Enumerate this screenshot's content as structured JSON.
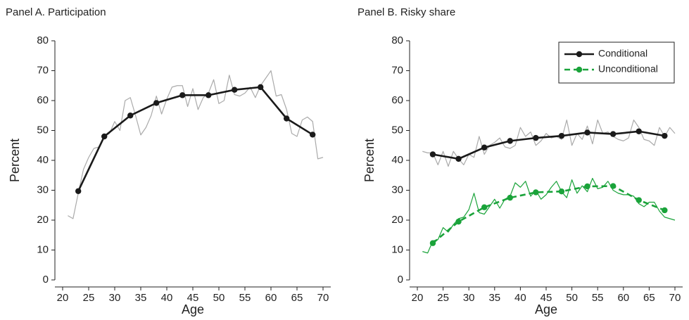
{
  "chart_data": [
    {
      "type": "line",
      "title": "Panel A. Participation",
      "xlabel": "Age",
      "ylabel": "Percent",
      "xlim": [
        20,
        70
      ],
      "xticks": [
        20,
        25,
        30,
        35,
        40,
        45,
        50,
        55,
        60,
        65,
        70
      ],
      "ylim": [
        0,
        80
      ],
      "yticks": [
        0,
        10,
        20,
        30,
        40,
        50,
        60,
        70,
        80
      ],
      "series": [
        {
          "color": "#aaaaaa",
          "x": [
            21,
            22,
            23,
            24,
            25,
            26,
            27,
            28,
            29,
            30,
            31,
            32,
            33,
            34,
            35,
            36,
            37,
            38,
            39,
            40,
            41,
            42,
            43,
            44,
            45,
            46,
            47,
            48,
            49,
            50,
            51,
            52,
            53,
            54,
            55,
            56,
            57,
            58,
            59,
            60,
            61,
            62,
            63,
            64,
            65,
            66,
            67,
            68,
            69,
            70
          ],
          "values": [
            21.5,
            20.5,
            29,
            37,
            41,
            44,
            44.5,
            48,
            49,
            53,
            50,
            60,
            61,
            55,
            48.5,
            51,
            55,
            61.5,
            55.5,
            60.5,
            64.5,
            65,
            65,
            58,
            64,
            57,
            61,
            62.5,
            67,
            59,
            60,
            68.5,
            62,
            61.5,
            62.5,
            64.5,
            61,
            65,
            67.5,
            70,
            61.5,
            62,
            57,
            49,
            48,
            53.5,
            54.5,
            53,
            40.5,
            41
          ]
        },
        {
          "color": "#1a1a1a",
          "marker": true,
          "x": [
            23,
            28,
            33,
            38,
            43,
            48,
            53,
            58,
            63,
            68
          ],
          "values": [
            29.7,
            48,
            55,
            59.2,
            61.8,
            61.8,
            63.6,
            64.5,
            54,
            48.6
          ]
        }
      ]
    },
    {
      "type": "line",
      "title": "Panel B. Risky share",
      "xlabel": "Age",
      "ylabel": "Percent",
      "xlim": [
        20,
        70
      ],
      "xticks": [
        20,
        25,
        30,
        35,
        40,
        45,
        50,
        55,
        60,
        65,
        70
      ],
      "ylim": [
        0,
        80
      ],
      "yticks": [
        0,
        10,
        20,
        30,
        40,
        50,
        60,
        70,
        80
      ],
      "legend": "upper right",
      "series": [
        {
          "color": "#aaaaaa",
          "x": [
            21,
            22,
            23,
            24,
            25,
            26,
            27,
            28,
            29,
            30,
            31,
            32,
            33,
            34,
            35,
            36,
            37,
            38,
            39,
            40,
            41,
            42,
            43,
            44,
            45,
            46,
            47,
            48,
            49,
            50,
            51,
            52,
            53,
            54,
            55,
            56,
            57,
            58,
            59,
            60,
            61,
            62,
            63,
            64,
            65,
            66,
            67,
            68,
            69,
            70
          ],
          "values": [
            43,
            42.5,
            42.5,
            38.5,
            43,
            38,
            43,
            40.5,
            38.5,
            42,
            41,
            48,
            42,
            45,
            46,
            47.5,
            44.5,
            44,
            45,
            51,
            48,
            49.5,
            45,
            46.5,
            49,
            47.5,
            48,
            47,
            53.5,
            45,
            49,
            47,
            51.5,
            45.5,
            53.5,
            49,
            49.5,
            48,
            47,
            46.5,
            47.5,
            53.5,
            51,
            47,
            46.5,
            45,
            51,
            48,
            51,
            49
          ]
        },
        {
          "color": "#1aa33a",
          "x": [
            21,
            22,
            23,
            24,
            25,
            26,
            27,
            28,
            29,
            30,
            31,
            32,
            33,
            34,
            35,
            36,
            37,
            38,
            39,
            40,
            41,
            42,
            43,
            44,
            45,
            46,
            47,
            48,
            49,
            50,
            51,
            52,
            53,
            54,
            55,
            56,
            57,
            58,
            59,
            60,
            61,
            62,
            63,
            64,
            65,
            66,
            67,
            68,
            69,
            70
          ],
          "values": [
            9.5,
            9,
            13,
            13.5,
            17.5,
            16,
            18.5,
            20.5,
            21,
            23.5,
            29,
            22.5,
            22,
            24.5,
            27,
            24,
            27,
            28,
            32.5,
            31,
            33,
            28,
            30,
            27,
            28.5,
            31,
            33,
            29.5,
            27.5,
            33.5,
            29,
            31.5,
            29.5,
            34,
            30.5,
            31,
            33,
            30,
            29,
            28.5,
            28.5,
            28,
            25.5,
            24.5,
            26,
            26,
            23,
            21,
            20.5,
            20
          ]
        },
        {
          "name": "Conditional",
          "color": "#1a1a1a",
          "marker": true,
          "x": [
            23,
            28,
            33,
            38,
            43,
            48,
            53,
            58,
            63,
            68
          ],
          "values": [
            42,
            40.5,
            44.3,
            46.5,
            47.5,
            48.2,
            49.3,
            48.8,
            49.7,
            48.2
          ]
        },
        {
          "name": "Unconditional",
          "color": "#1aa33a",
          "marker": true,
          "dash": true,
          "x": [
            23,
            28,
            33,
            38,
            43,
            48,
            53,
            58,
            63,
            68
          ],
          "values": [
            12.3,
            19.5,
            24.3,
            27.5,
            29.3,
            29.6,
            31.3,
            31.4,
            26.7,
            23.3
          ]
        }
      ]
    }
  ]
}
